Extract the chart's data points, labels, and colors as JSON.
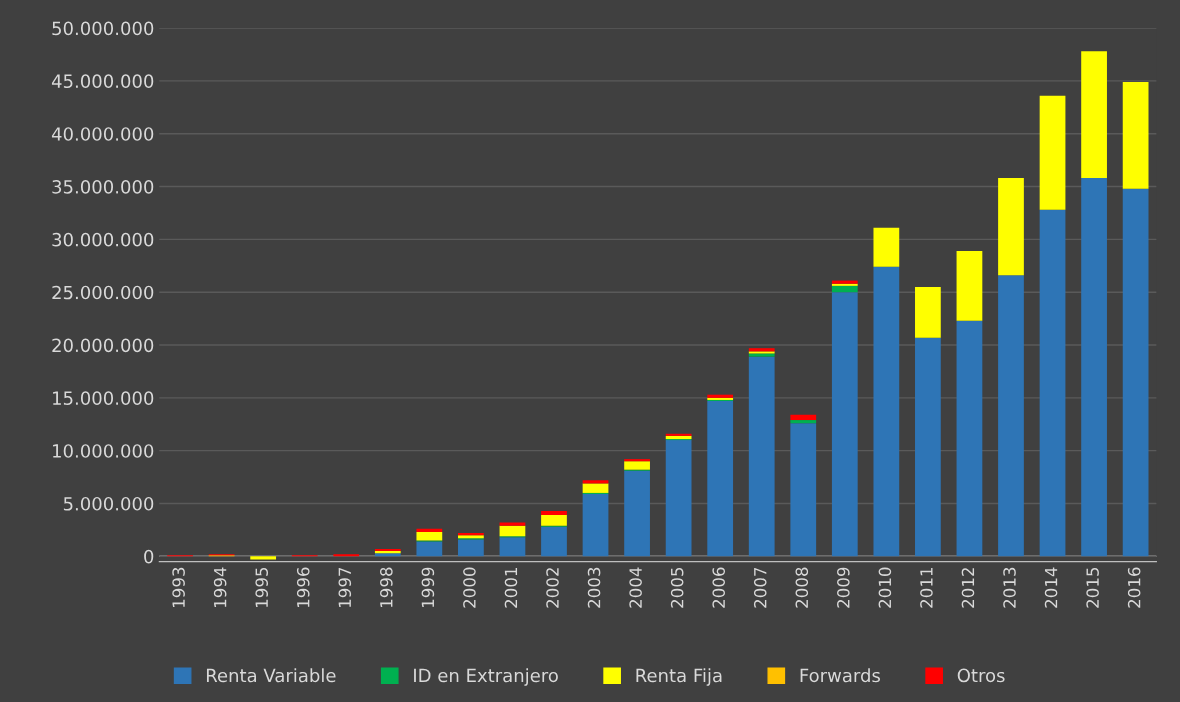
{
  "chart_data": {
    "type": "bar",
    "stacked": true,
    "categories": [
      "1993",
      "1994",
      "1995",
      "1996",
      "1997",
      "1998",
      "1999",
      "2000",
      "2001",
      "2002",
      "2003",
      "2004",
      "2005",
      "2006",
      "2007",
      "2008",
      "2009",
      "2010",
      "2011",
      "2012",
      "2013",
      "2014",
      "2015",
      "2016"
    ],
    "series": [
      {
        "name": "Renta Variable",
        "color": "#2e75b6",
        "values": [
          0,
          0,
          0,
          0,
          0,
          300000,
          1400000,
          1600000,
          1800000,
          2800000,
          5900000,
          8100000,
          11000000,
          14700000,
          18900000,
          12600000,
          25000000,
          27400000,
          20700000,
          22300000,
          26600000,
          32800000,
          35800000,
          34800000
        ]
      },
      {
        "name": "ID en Extranjero",
        "color": "#00b050",
        "values": [
          0,
          0,
          0,
          0,
          0,
          0,
          100000,
          100000,
          100000,
          100000,
          100000,
          100000,
          100000,
          100000,
          300000,
          300000,
          600000,
          0,
          0,
          0,
          0,
          0,
          0,
          0
        ]
      },
      {
        "name": "Renta Fija",
        "color": "#ffff00",
        "values": [
          0,
          0,
          -300000,
          0,
          0,
          200000,
          800000,
          300000,
          1000000,
          1000000,
          900000,
          800000,
          300000,
          200000,
          200000,
          0,
          200000,
          3700000,
          4800000,
          6600000,
          9200000,
          10800000,
          12000000,
          10100000
        ]
      },
      {
        "name": "Forwards",
        "color": "#ffc000",
        "values": [
          0,
          100000,
          0,
          0,
          0,
          0,
          0,
          0,
          0,
          0,
          0,
          0,
          0,
          0,
          0,
          0,
          0,
          0,
          0,
          0,
          0,
          0,
          0,
          0
        ]
      },
      {
        "name": "Otros",
        "color": "#ff0000",
        "values": [
          100000,
          100000,
          0,
          100000,
          200000,
          200000,
          300000,
          200000,
          300000,
          400000,
          300000,
          200000,
          200000,
          300000,
          300000,
          500000,
          300000,
          0,
          0,
          0,
          0,
          0,
          0,
          0
        ]
      }
    ],
    "ylim": [
      -500000,
      50000000
    ],
    "yticks": [
      {
        "value": 0,
        "label": "0"
      },
      {
        "value": 5000000,
        "label": "5.000.000"
      },
      {
        "value": 10000000,
        "label": "10.000.000"
      },
      {
        "value": 15000000,
        "label": "15.000.000"
      },
      {
        "value": 20000000,
        "label": "20.000.000"
      },
      {
        "value": 25000000,
        "label": "25.000.000"
      },
      {
        "value": 30000000,
        "label": "30.000.000"
      },
      {
        "value": 35000000,
        "label": "35.000.000"
      },
      {
        "value": 40000000,
        "label": "40.000.000"
      },
      {
        "value": 45000000,
        "label": "45.000.000"
      },
      {
        "value": 50000000,
        "label": "50.000.000"
      }
    ],
    "grid": "y",
    "legend": "bottom"
  }
}
